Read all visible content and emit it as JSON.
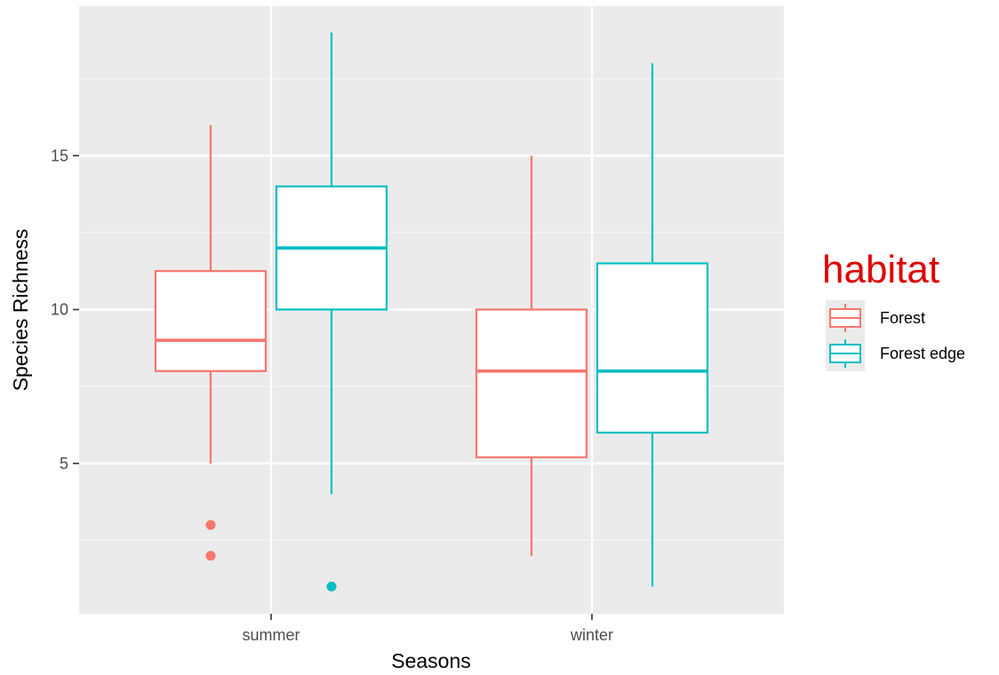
{
  "chart_data": {
    "type": "boxplot",
    "xlabel": "Seasons",
    "ylabel": "Species Richness",
    "categories": [
      "summer",
      "winter"
    ],
    "ylim": [
      0,
      19.5
    ],
    "yticks": [
      5,
      10,
      15
    ],
    "grid": true,
    "legend": {
      "title": "habitat",
      "title_color": "#e00000",
      "position": "right"
    },
    "series": [
      {
        "name": "Forest",
        "color": "#f8766d",
        "boxes": [
          {
            "category": "summer",
            "min": 5,
            "q1": 8,
            "median": 9,
            "q3": 11.25,
            "max": 16,
            "outliers": [
              3,
              2
            ]
          },
          {
            "category": "winter",
            "min": 2,
            "q1": 5.2,
            "median": 8,
            "q3": 10,
            "max": 15,
            "outliers": []
          }
        ]
      },
      {
        "name": "Forest edge",
        "color": "#00bfc4",
        "boxes": [
          {
            "category": "summer",
            "min": 4,
            "q1": 10,
            "median": 12,
            "q3": 14,
            "max": 19,
            "outliers": [
              1
            ]
          },
          {
            "category": "winter",
            "min": 1,
            "q1": 6,
            "median": 8,
            "q3": 11.5,
            "max": 18,
            "outliers": []
          }
        ]
      }
    ]
  }
}
